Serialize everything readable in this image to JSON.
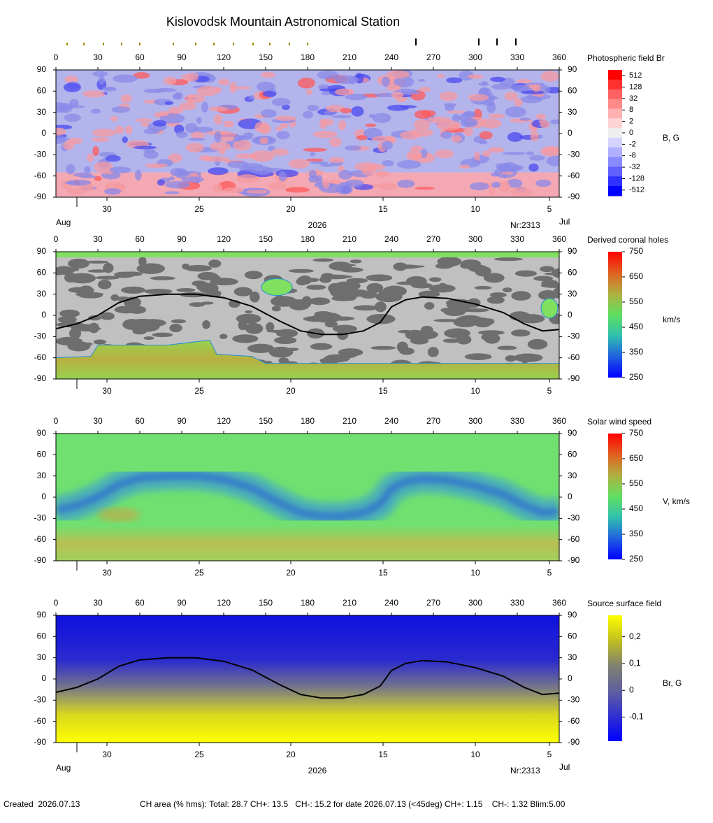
{
  "title": "Kislovodsk Mountain Astronomical Station",
  "chart_data": [
    {
      "type": "heatmap",
      "map": "photosphere",
      "colorbar_title": "Photospheric field Br",
      "colorbar_unit": "B, G",
      "xlim": [
        0,
        360
      ],
      "xticks": [
        0,
        30,
        60,
        90,
        120,
        150,
        180,
        210,
        240,
        270,
        300,
        330,
        360
      ],
      "ylim": [
        -90,
        90
      ],
      "yticks": [
        90,
        60,
        30,
        0,
        -30,
        -60,
        -90
      ],
      "date_ticks": [
        {
          "value": 36.5,
          "label": "30"
        },
        {
          "value": 102.5,
          "label": "25"
        },
        {
          "value": 168,
          "label": "20"
        },
        {
          "value": 234,
          "label": "15"
        },
        {
          "value": 300,
          "label": "10"
        },
        {
          "value": 353,
          "label": "5"
        }
      ],
      "date_minor_ticks": [
        15
      ],
      "month_left": "Aug",
      "year": "2026",
      "rotation": "Nr:2313",
      "month_right": "Jul",
      "colorbar_style": "steps",
      "colorbar_ticks": [
        512,
        128,
        32,
        8,
        2,
        0,
        -2,
        -8,
        -32,
        -128,
        -512
      ],
      "colorbar_colors": [
        "#ff0000",
        "#ff3030",
        "#ff6060",
        "#ff8a8a",
        "#ffb0b0",
        "#ffd4d4",
        "#eeeeee",
        "#d4d4ff",
        "#b0b0ff",
        "#8a8aff",
        "#6060ff",
        "#3030ff",
        "#0000ff"
      ],
      "marker_series": [
        {
          "color": "#9a8a00",
          "x": [
            8,
            20,
            34,
            47,
            60,
            84,
            100,
            113,
            127,
            141,
            153,
            167,
            180
          ]
        },
        {
          "color": "#000000",
          "x": [
            257.5,
            302.5,
            315.5,
            329
          ]
        }
      ]
    },
    {
      "type": "heatmap",
      "map": "coronal-holes",
      "colorbar_title": "Derived coronal holes",
      "colorbar_unit": "km/s",
      "xlim": [
        0,
        360
      ],
      "xticks": [
        0,
        30,
        60,
        90,
        120,
        150,
        180,
        210,
        240,
        270,
        300,
        330,
        360
      ],
      "ylim": [
        -90,
        90
      ],
      "yticks": [
        90,
        60,
        30,
        0,
        -30,
        -60,
        -90
      ],
      "date_ticks": [
        {
          "value": 36.5,
          "label": "30"
        },
        {
          "value": 102.5,
          "label": "25"
        },
        {
          "value": 168,
          "label": "20"
        },
        {
          "value": 234,
          "label": "15"
        },
        {
          "value": 300,
          "label": "10"
        },
        {
          "value": 353,
          "label": "5"
        }
      ],
      "date_minor_ticks": [
        15
      ],
      "colorbar_style": "smooth",
      "colorbar_lim": [
        250,
        750
      ],
      "colorbar_ticks": [
        750,
        650,
        550,
        450,
        350,
        250
      ],
      "colorbar_colors": [
        "#ff0000",
        "#e06020",
        "#b0b040",
        "#60e060",
        "#30c0b0",
        "#2060e0",
        "#0000ff"
      ]
    },
    {
      "type": "heatmap",
      "map": "wind",
      "colorbar_title": "Solar wind speed",
      "colorbar_unit": "V, km/s",
      "xlim": [
        0,
        360
      ],
      "xticks": [
        0,
        30,
        60,
        90,
        120,
        150,
        180,
        210,
        240,
        270,
        300,
        330,
        360
      ],
      "ylim": [
        -90,
        90
      ],
      "yticks": [
        90,
        60,
        30,
        0,
        -30,
        -60,
        -90
      ],
      "date_ticks": [
        {
          "value": 36.5,
          "label": "30"
        },
        {
          "value": 102.5,
          "label": "25"
        },
        {
          "value": 168,
          "label": "20"
        },
        {
          "value": 234,
          "label": "15"
        },
        {
          "value": 300,
          "label": "10"
        },
        {
          "value": 353,
          "label": "5"
        }
      ],
      "date_minor_ticks": [
        15
      ],
      "colorbar_style": "smooth",
      "colorbar_lim": [
        250,
        750
      ],
      "colorbar_ticks": [
        750,
        650,
        550,
        450,
        350,
        250
      ],
      "colorbar_colors": [
        "#ff0000",
        "#e06020",
        "#b0b040",
        "#60e060",
        "#30c0b0",
        "#2060e0",
        "#0000ff"
      ]
    },
    {
      "type": "heatmap",
      "map": "source-surface",
      "colorbar_title": "Source surface field",
      "colorbar_unit": "Br, G",
      "xlim": [
        0,
        360
      ],
      "xticks": [
        0,
        30,
        60,
        90,
        120,
        150,
        180,
        210,
        240,
        270,
        300,
        330,
        360
      ],
      "ylim": [
        -90,
        90
      ],
      "yticks": [
        90,
        60,
        30,
        0,
        -30,
        -60,
        -90
      ],
      "date_ticks": [
        {
          "value": 36.5,
          "label": "30"
        },
        {
          "value": 102.5,
          "label": "25"
        },
        {
          "value": 168,
          "label": "20"
        },
        {
          "value": 234,
          "label": "15"
        },
        {
          "value": 300,
          "label": "10"
        },
        {
          "value": 353,
          "label": "5"
        }
      ],
      "date_minor_ticks": [
        15
      ],
      "month_left": "Aug",
      "year": "2026",
      "rotation": "Nr:2313",
      "month_right": "Jul",
      "colorbar_style": "smooth",
      "colorbar_lim": [
        -0.19,
        0.28
      ],
      "colorbar_ticks": [
        {
          "value": 0.2,
          "label": "0,2"
        },
        {
          "value": 0.1,
          "label": "0,1"
        },
        0,
        {
          "value": -0.1,
          "label": "-0,1"
        }
      ],
      "colorbar_colors": [
        "#ffff00",
        "#c0c020",
        "#808070",
        "#6060a0",
        "#3030d0",
        "#0000ff"
      ]
    }
  ],
  "footer": {
    "created": "Created  2026.07.13",
    "ch_area": "CH area (% hms): Total: 28.7 CH+: 13.5   CH-: 15.2 for date 2026.07.13 (<45deg) CH+: 1.15    CH-: 1.32 Blim:5.00"
  }
}
